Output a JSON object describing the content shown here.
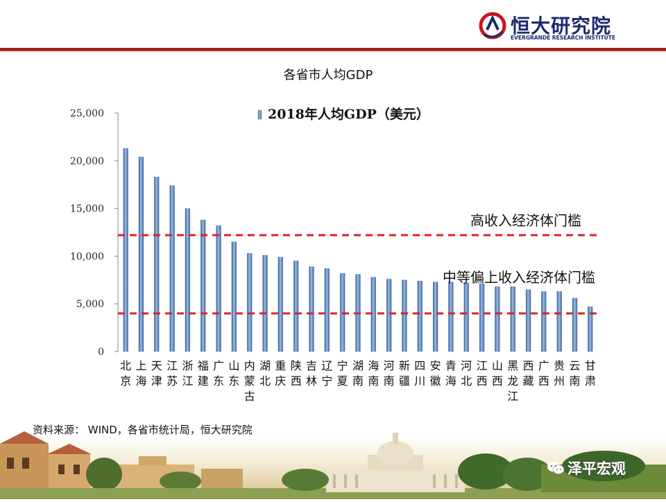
{
  "header": {
    "logo_cn": "恒大研究院",
    "logo_en": "EVERGRANDE RESEARCH INSTITUTE",
    "rule_color": "#a51c1c",
    "brand_color": "#1a2a6c"
  },
  "title": "各省市人均GDP",
  "source": "资料来源： WIND，各省市统计局，恒大研究院",
  "watermark": {
    "text": "泽平宏观",
    "icon": "wechat-icon"
  },
  "chart_data": {
    "type": "bar",
    "legend": "2018年人均GDP（美元）",
    "legend_position": "top",
    "categories": [
      "北京",
      "上海",
      "天津",
      "江苏",
      "浙江",
      "福建",
      "广东",
      "山东",
      "内蒙古",
      "湖北",
      "重庆",
      "陕西",
      "吉林",
      "辽宁",
      "宁夏",
      "湖南",
      "海南",
      "河南",
      "新疆",
      "四川",
      "安徽",
      "青海",
      "河北",
      "江西",
      "山西",
      "黑龙江",
      "西藏",
      "广西",
      "贵州",
      "云南",
      "甘肃"
    ],
    "series": [
      {
        "name": "2018年人均GDP（美元）",
        "color": "#4f81bd",
        "values": [
          21300,
          20400,
          18300,
          17400,
          15000,
          13800,
          13200,
          11500,
          10300,
          10100,
          9900,
          9500,
          8900,
          8700,
          8200,
          8100,
          7800,
          7600,
          7500,
          7400,
          7300,
          7300,
          7200,
          7100,
          6800,
          6800,
          6500,
          6300,
          6300,
          5600,
          4700
        ]
      }
    ],
    "ylim": [
      0,
      25000
    ],
    "yticks": [
      {
        "value": 0,
        "label": "0"
      },
      {
        "value": 5000,
        "label": "5,000"
      },
      {
        "value": 10000,
        "label": "10,000"
      },
      {
        "value": 15000,
        "label": "15,000"
      },
      {
        "value": 20000,
        "label": "20,000"
      },
      {
        "value": 25000,
        "label": "25,000"
      }
    ],
    "grid": false,
    "reference_lines": [
      {
        "label": "高收入经济体门槛",
        "value": 12200,
        "color": "#e02020",
        "style": "dashed"
      },
      {
        "label": "中等偏上收入经济体门槛",
        "value": 4000,
        "color": "#e02020",
        "style": "dashed"
      }
    ]
  }
}
